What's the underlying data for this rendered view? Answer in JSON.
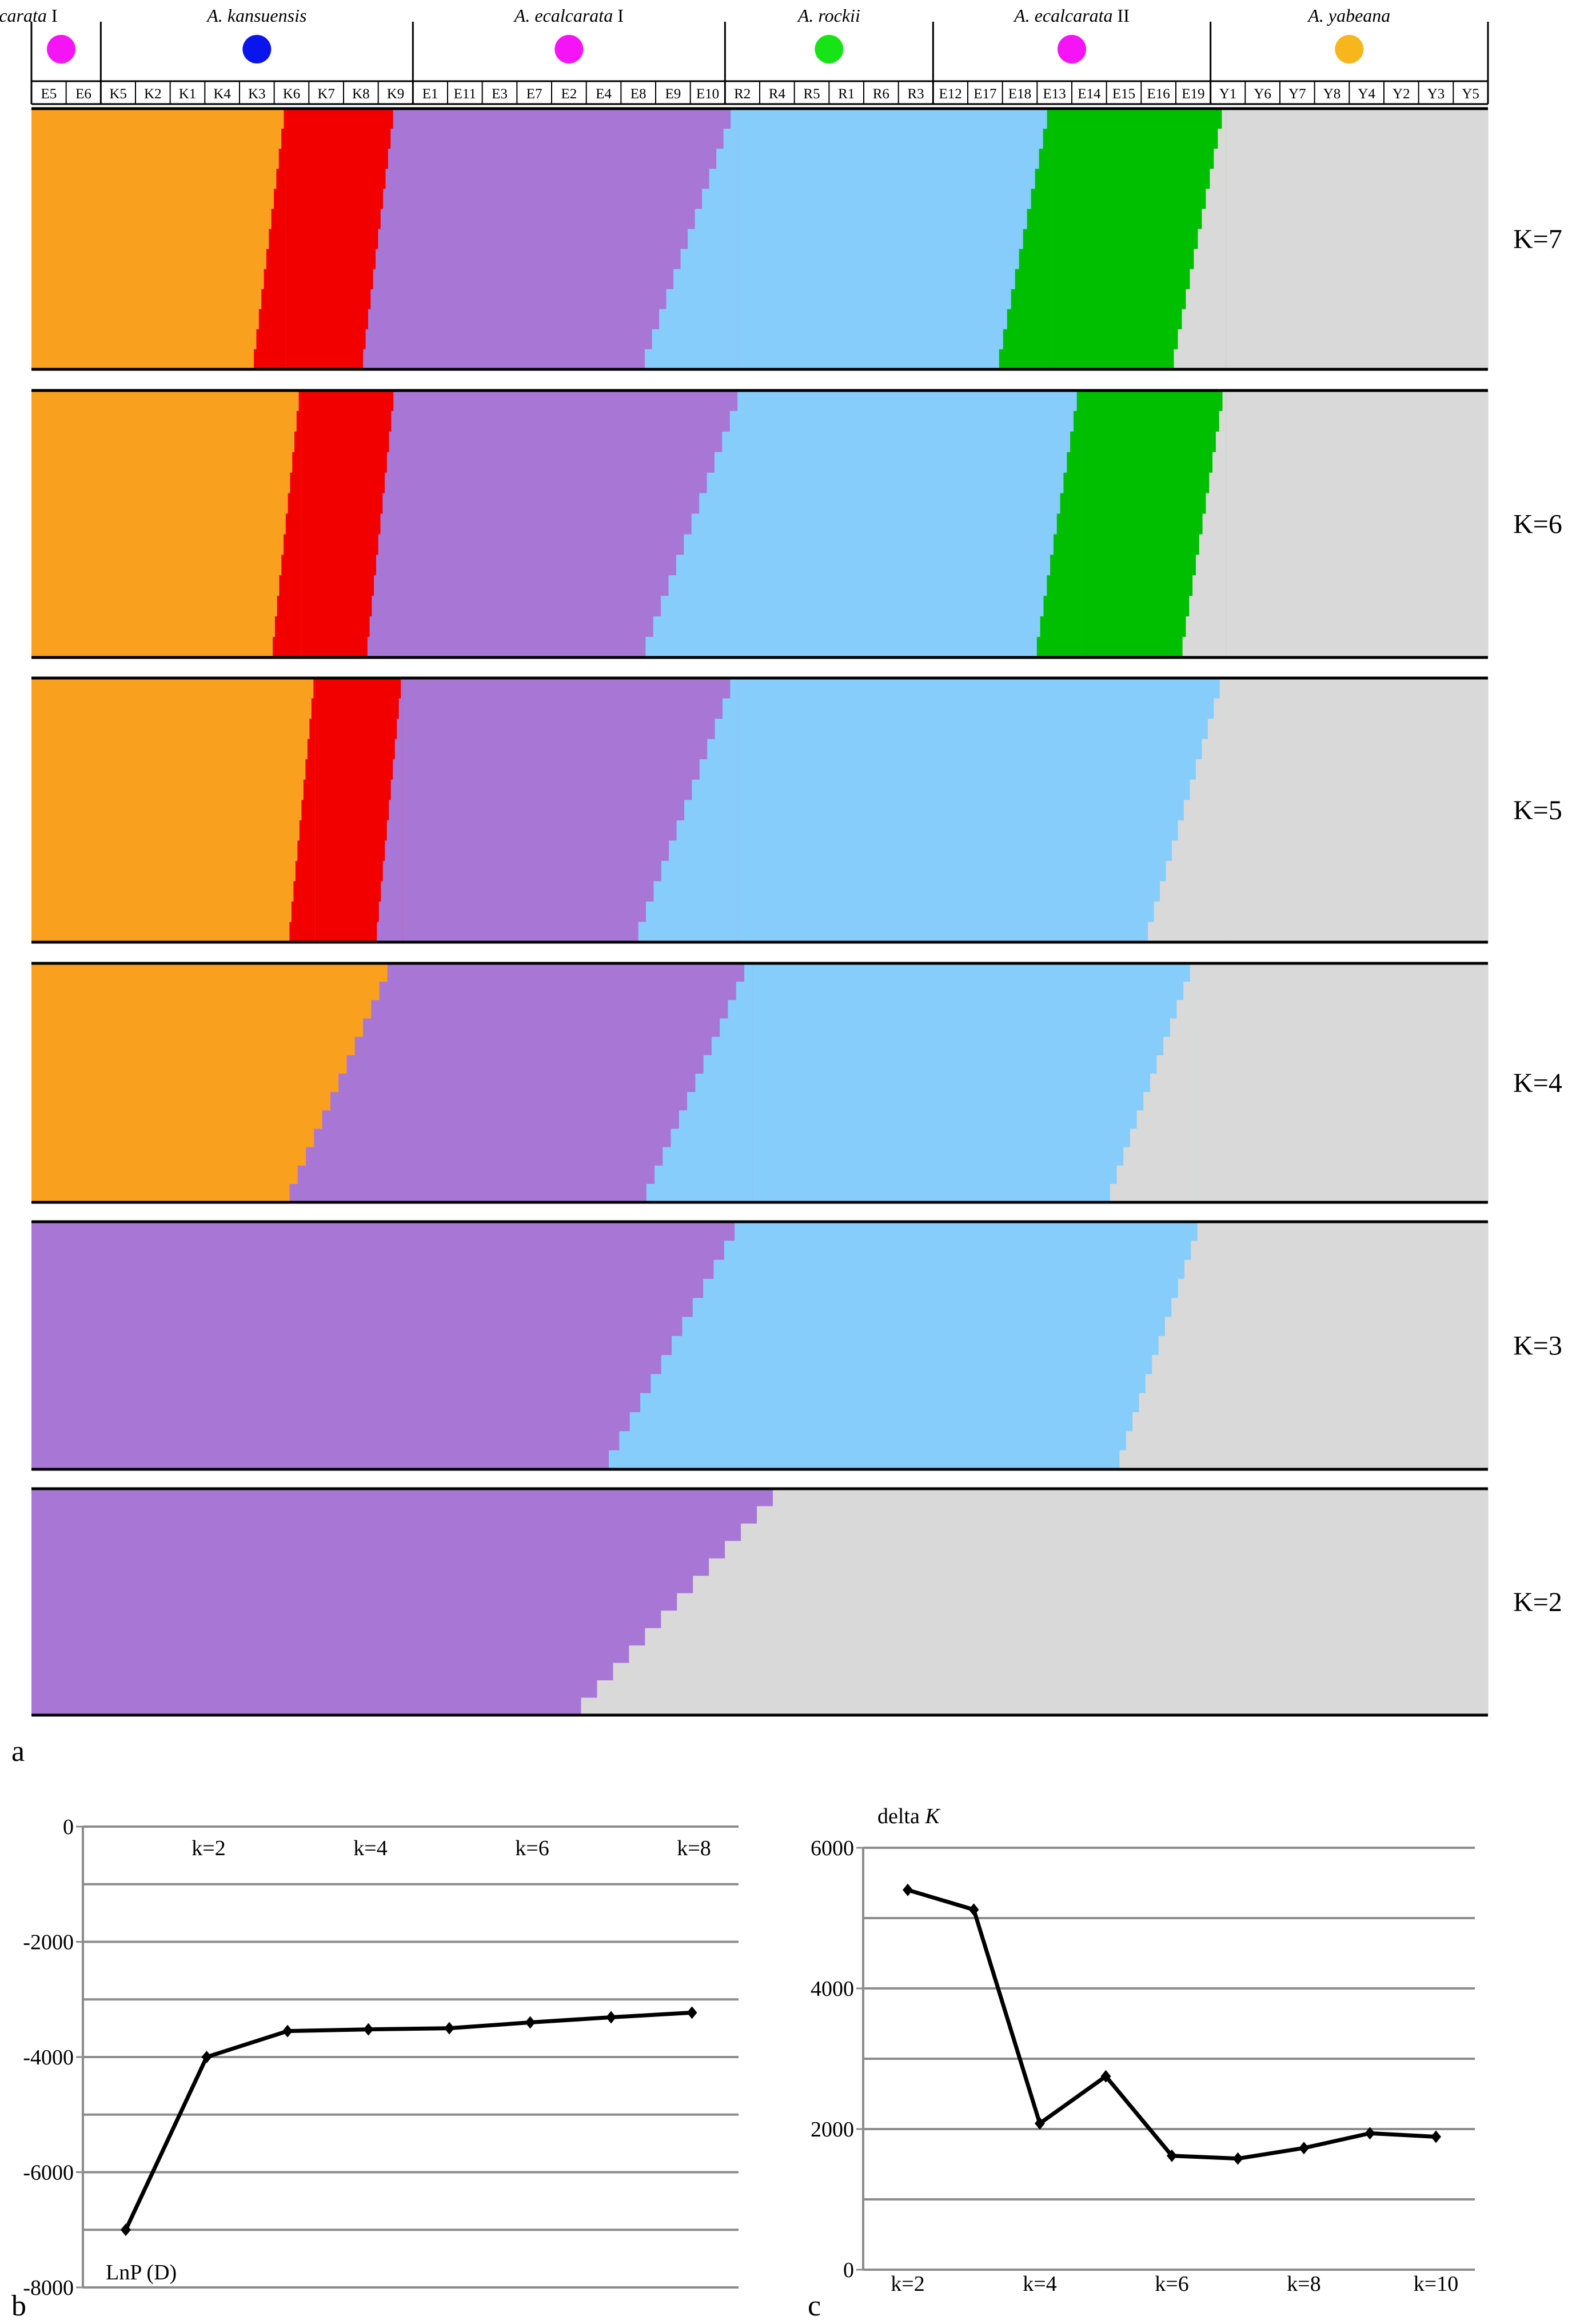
{
  "figure": {
    "panel_a": "a",
    "panel_b": "b",
    "panel_c": "c"
  },
  "colors": {
    "orange": "#F9A11E",
    "red": "#F20000",
    "purple": "#A877D6",
    "lightblue": "#87CDFB",
    "green": "#00BE00",
    "darkgreen": "#0F6B12",
    "gray": "#D9D9D9",
    "magenta": "#F414F5",
    "blue": "#0A14EC",
    "lime": "#17E417",
    "gold": "#F7B61B"
  },
  "chart_data": [
    {
      "type": "bar",
      "subtype": "stacked-admixture",
      "population_codes": [
        "E5",
        "E6",
        "K5",
        "K2",
        "K1",
        "K4",
        "K3",
        "K6",
        "K7",
        "K8",
        "K9",
        "E1",
        "E11",
        "E3",
        "E7",
        "E2",
        "E4",
        "E8",
        "E9",
        "E10",
        "R2",
        "R4",
        "R5",
        "R1",
        "R6",
        "R3",
        "E12",
        "E17",
        "E18",
        "E13",
        "E14",
        "E15",
        "E16",
        "E19",
        "Y1",
        "Y6",
        "Y7",
        "Y8",
        "Y4",
        "Y2",
        "Y3",
        "Y5"
      ],
      "groups": [
        {
          "name": "A. ecalcarata",
          "suffix": "I",
          "marker_color": "magenta"
        },
        {
          "name": "A. kansuensis",
          "suffix": "",
          "marker_color": "blue"
        },
        {
          "name": "A. ecalcarata",
          "suffix": "I",
          "marker_color": "magenta"
        },
        {
          "name": "A. rockii",
          "suffix": "",
          "marker_color": "lime"
        },
        {
          "name": "A. ecalcarata",
          "suffix": "II",
          "marker_color": "magenta"
        },
        {
          "name": "A. yabeana",
          "suffix": "",
          "marker_color": "gold"
        }
      ],
      "rows": [
        {
          "label": "K=7",
          "segments": [
            {
              "color": "orange",
              "share": 0.175
            },
            {
              "color": "red",
              "share": 0.075
            },
            {
              "color": "purple",
              "share": 0.235
            },
            {
              "color": "lightblue",
              "share": 0.215
            },
            {
              "color": "green",
              "share": 0.12
            },
            {
              "color": "gray",
              "share": 0.18
            }
          ]
        },
        {
          "label": "K=6",
          "segments": [
            {
              "color": "orange",
              "share": 0.185
            },
            {
              "color": "red",
              "share": 0.065
            },
            {
              "color": "purple",
              "share": 0.24
            },
            {
              "color": "lightblue",
              "share": 0.23
            },
            {
              "color": "green",
              "share": 0.1
            },
            {
              "color": "gray",
              "share": 0.18
            }
          ]
        },
        {
          "label": "K=5",
          "segments": [
            {
              "color": "orange",
              "share": 0.195
            },
            {
              "color": "red",
              "share": 0.06
            },
            {
              "color": "purple",
              "share": 0.23
            },
            {
              "color": "lightblue",
              "share": 0.335
            },
            {
              "color": "gray",
              "share": 0.18
            }
          ]
        },
        {
          "label": "K=4",
          "segments": [
            {
              "color": "orange",
              "share": 0.25
            },
            {
              "color": "purple",
              "share": 0.245
            },
            {
              "color": "lightblue",
              "share": 0.305
            },
            {
              "color": "gray",
              "share": 0.2
            }
          ]
        },
        {
          "label": "K=3",
          "segments": [
            {
              "color": "purple",
              "share": 0.49
            },
            {
              "color": "lightblue",
              "share": 0.315
            },
            {
              "color": "gray",
              "share": 0.195
            }
          ]
        },
        {
          "label": "K=2",
          "segments": [
            {
              "color": "purple",
              "share": 0.52
            },
            {
              "color": "gray",
              "share": 0.48
            }
          ]
        }
      ]
    },
    {
      "type": "line",
      "x": [
        1,
        2,
        3,
        4,
        5,
        6,
        7,
        8
      ],
      "values": [
        -7000,
        -4000,
        -3550,
        -3520,
        -3500,
        -3400,
        -3310,
        -3230
      ],
      "ylim": [
        -8000,
        0
      ],
      "yticks": [
        0,
        -2000,
        -4000,
        -6000,
        -8000
      ],
      "xtick_labels": [
        "k=2",
        "k=4",
        "k=6",
        "k=8"
      ],
      "ylabel": "LnP (D)",
      "grid": true
    },
    {
      "type": "line",
      "x": [
        2,
        3,
        4,
        5,
        6,
        7,
        8,
        9,
        10
      ],
      "values": [
        5400,
        5120,
        2080,
        2750,
        1620,
        1580,
        1730,
        1940,
        1890
      ],
      "ylim": [
        0,
        6000
      ],
      "yticks": [
        0,
        2000,
        4000,
        6000
      ],
      "xtick_labels": [
        "k=2",
        "k=4",
        "k=6",
        "k=8",
        "k=10"
      ],
      "ylabel": "delta",
      "ylabel_italic": "K",
      "grid": true
    }
  ]
}
